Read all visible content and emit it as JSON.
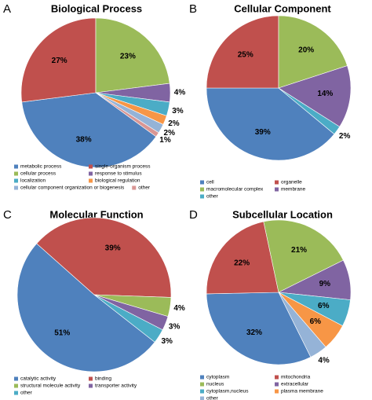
{
  "chart_data": [
    {
      "type": "pie",
      "panel": "A",
      "title": "Biological Process",
      "categories": [
        "metabolic process",
        "single-organism process",
        "cellular process",
        "response to stimulus",
        "localization",
        "biological regulation",
        "cellular component organization or biogenesis",
        "other"
      ],
      "values": [
        38,
        27,
        23,
        4,
        3,
        2,
        2,
        1
      ],
      "value_labels": [
        "38%",
        "27%",
        "23%",
        "4%",
        "3%",
        "2%",
        "2%",
        "1%"
      ],
      "colors": [
        "#4f81bd",
        "#c0504d",
        "#9bbb59",
        "#8064a2",
        "#4bacc6",
        "#f79646",
        "#95b3d7",
        "#d99694"
      ]
    },
    {
      "type": "pie",
      "panel": "B",
      "title": "Cellular Component",
      "categories": [
        "cell",
        "organelle",
        "macromolecular complex",
        "membrane",
        "other"
      ],
      "values": [
        39,
        25,
        20,
        14,
        2
      ],
      "value_labels": [
        "39%",
        "25%",
        "20%",
        "14%",
        "2%"
      ],
      "colors": [
        "#4f81bd",
        "#c0504d",
        "#9bbb59",
        "#8064a2",
        "#4bacc6"
      ]
    },
    {
      "type": "pie",
      "panel": "C",
      "title": "Molecular Function",
      "categories": [
        "catalytic activity",
        "binding",
        "structural molecule activity",
        "transporter activity",
        "other"
      ],
      "values": [
        51,
        39,
        4,
        3,
        3
      ],
      "value_labels": [
        "51%",
        "39%",
        "4%",
        "3%",
        "3%"
      ],
      "colors": [
        "#4f81bd",
        "#c0504d",
        "#9bbb59",
        "#8064a2",
        "#4bacc6"
      ]
    },
    {
      "type": "pie",
      "panel": "D",
      "title": "Subcellular Location",
      "categories": [
        "cytoplasm",
        "mitochondria",
        "nucleus",
        "extracellular",
        "cytoplasm,nucleus",
        "plasma membrane",
        "other"
      ],
      "values": [
        32,
        22,
        21,
        9,
        6,
        6,
        4
      ],
      "value_labels": [
        "32%",
        "22%",
        "21%",
        "9%",
        "6%",
        "6%",
        "4%"
      ],
      "colors": [
        "#4f81bd",
        "#c0504d",
        "#9bbb59",
        "#8064a2",
        "#4bacc6",
        "#f79646",
        "#95b3d7"
      ]
    }
  ]
}
